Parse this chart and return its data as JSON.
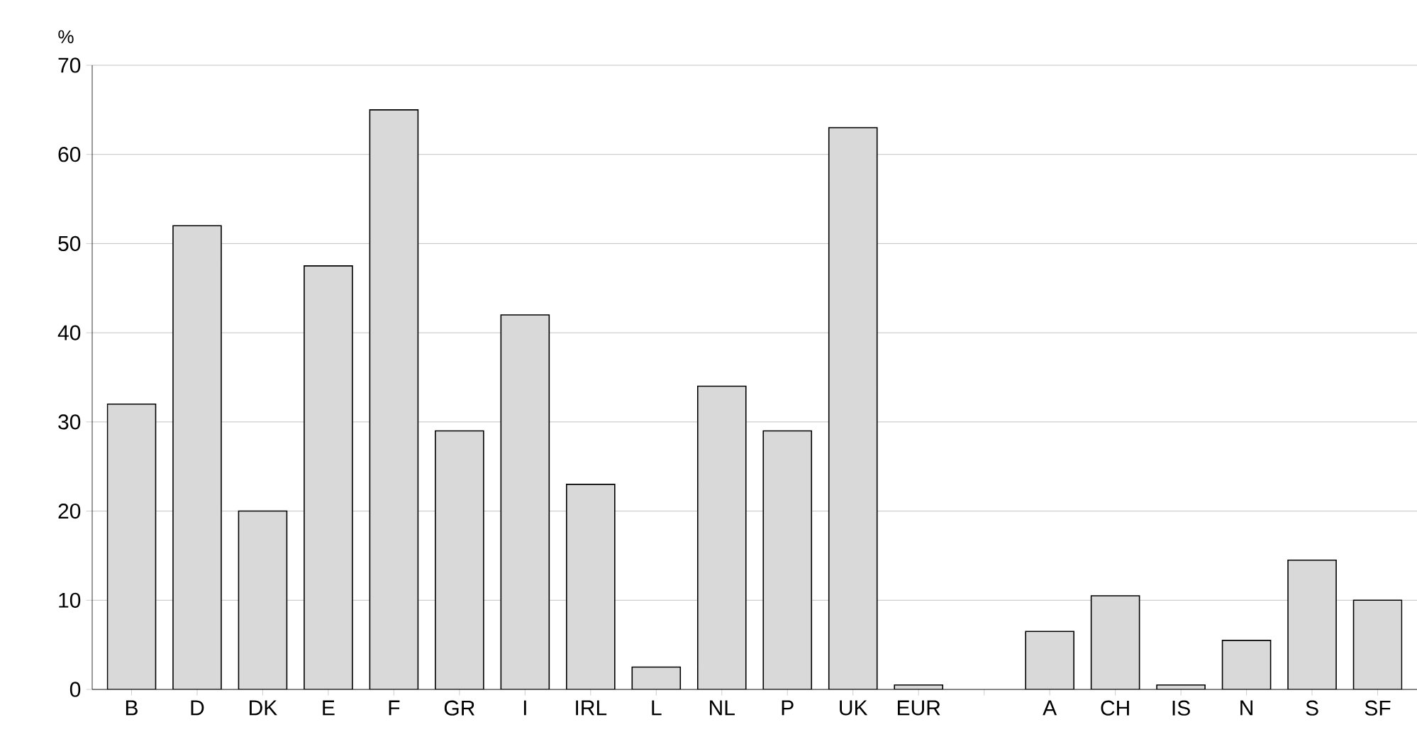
{
  "chart_data": {
    "type": "bar",
    "ylabel": "%",
    "categories": [
      "B",
      "D",
      "DK",
      "E",
      "F",
      "GR",
      "I",
      "IRL",
      "L",
      "NL",
      "P",
      "UK",
      "EUR",
      null,
      "A",
      "CH",
      "IS",
      "N",
      "S",
      "SF"
    ],
    "values": [
      32,
      52,
      20,
      47.5,
      65,
      29,
      42,
      23,
      2.5,
      34,
      29,
      63,
      0.5,
      null,
      6.5,
      10.5,
      0.5,
      5.5,
      14.5,
      10
    ],
    "color": "#d9d9d9",
    "ylim": [
      0,
      70
    ],
    "yticks": [
      0,
      10,
      20,
      30,
      40,
      50,
      60,
      70
    ],
    "grid": "y"
  }
}
